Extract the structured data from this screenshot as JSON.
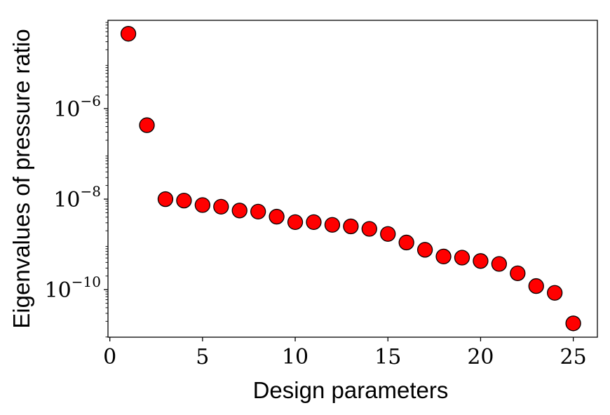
{
  "chart_data": {
    "type": "scatter",
    "xlabel": "Design parameters",
    "ylabel": "Eigenvalues of pressure ratio",
    "xlim": [
      -0.1,
      26.3
    ],
    "ylim_log10": [
      -11.05,
      -4.05
    ],
    "yscale": "log",
    "grid": false,
    "legend": "none",
    "marker_color": "#ff0000",
    "marker_edge_color": "#000000",
    "x_ticks": [
      {
        "value": 0,
        "label": "0"
      },
      {
        "value": 5,
        "label": "5"
      },
      {
        "value": 10,
        "label": "10"
      },
      {
        "value": 15,
        "label": "15"
      },
      {
        "value": 20,
        "label": "20"
      },
      {
        "value": 25,
        "label": "25"
      }
    ],
    "y_ticks": [
      {
        "exp": -6,
        "base": "10",
        "power": "−6"
      },
      {
        "exp": -8,
        "base": "10",
        "power": "−8"
      },
      {
        "exp": -10,
        "base": "10",
        "power": "−10"
      }
    ],
    "x": [
      1,
      2,
      3,
      4,
      5,
      6,
      7,
      8,
      9,
      10,
      11,
      12,
      13,
      14,
      15,
      16,
      17,
      18,
      19,
      20,
      21,
      22,
      23,
      24,
      25
    ],
    "y": [
      4.5e-05,
      4.3e-07,
      1e-08,
      9.3e-09,
      7.4e-09,
      6.8e-09,
      5.6e-09,
      5.3e-09,
      4.1e-09,
      3.1e-09,
      3.1e-09,
      2.7e-09,
      2.5e-09,
      2.2e-09,
      1.7e-09,
      1.1e-09,
      7.6e-10,
      5.4e-10,
      5.1e-10,
      4.3e-10,
      3.7e-10,
      2.3e-10,
      1.2e-10,
      8.5e-11,
      1.8e-11
    ]
  }
}
